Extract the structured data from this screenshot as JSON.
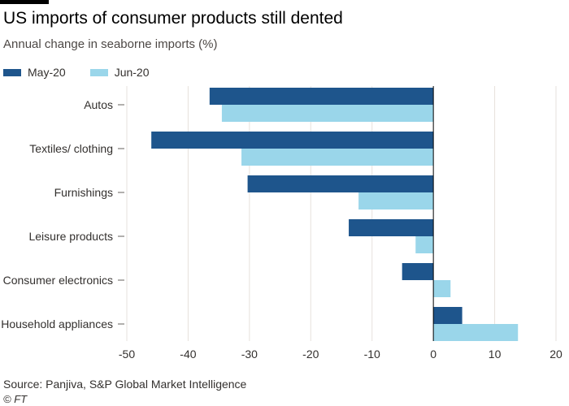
{
  "header": {
    "title": "US imports of consumer products still dented",
    "subtitle": "Annual change in seaborne imports (%)"
  },
  "footer": {
    "source": "Source: Panjiva, S&P Global Market Intelligence",
    "credit": "© FT"
  },
  "colors": {
    "may": "#1e558c",
    "jun": "#9ad6ea",
    "grid": "#e6e1dc",
    "axis": "#66605c"
  },
  "chart_data": {
    "type": "bar",
    "orientation": "horizontal",
    "categories": [
      "Autos",
      "Textiles/ clothing",
      "Furnishings",
      "Leisure products",
      "Consumer electronics",
      "Household appliances"
    ],
    "series": [
      {
        "name": "May-20",
        "values": [
          -36.5,
          -46,
          -30.3,
          -13.8,
          -5.1,
          4.7
        ]
      },
      {
        "name": "Jun-20",
        "values": [
          -34.5,
          -31.3,
          -12.2,
          -2.9,
          2.8,
          13.8
        ]
      }
    ],
    "xlim": [
      -50,
      20
    ],
    "xticks": [
      "-50",
      "-40",
      "-30",
      "-20",
      "-10",
      "0",
      "10",
      "20"
    ],
    "grid": true,
    "legend_position": "top-left"
  }
}
